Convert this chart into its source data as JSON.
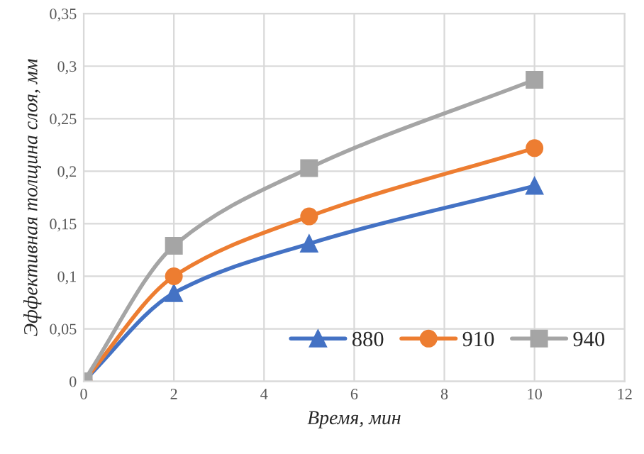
{
  "chart_data": {
    "type": "line",
    "xlabel": "Время, мин",
    "ylabel": "Эффективная толщина слоя, мм",
    "x": [
      0,
      2,
      5,
      10
    ],
    "series": [
      {
        "name": "880",
        "color": "#4472c4",
        "marker": "triangle",
        "values": [
          0,
          0.084,
          0.131,
          0.186
        ]
      },
      {
        "name": "910",
        "color": "#ed7d31",
        "marker": "circle",
        "values": [
          0,
          0.1,
          0.157,
          0.222
        ]
      },
      {
        "name": "940",
        "color": "#a5a5a5",
        "marker": "square",
        "values": [
          0,
          0.129,
          0.203,
          0.287
        ]
      }
    ],
    "xlim": [
      0,
      12
    ],
    "xticks": [
      0,
      2,
      4,
      6,
      8,
      10,
      12
    ],
    "ylim": [
      0,
      0.35
    ],
    "yticks": [
      0,
      {
        "value": 0.05,
        "label": "0,05"
      },
      {
        "value": 0.1,
        "label": "0,1"
      },
      {
        "value": 0.15,
        "label": "0,15"
      },
      {
        "value": 0.2,
        "label": "0,2"
      },
      {
        "value": 0.25,
        "label": "0,25"
      },
      {
        "value": 0.3,
        "label": "0,3"
      },
      {
        "value": 0.35,
        "label": "0,35"
      }
    ],
    "grid": true,
    "legend": "bottom right",
    "line_style": "solid"
  }
}
